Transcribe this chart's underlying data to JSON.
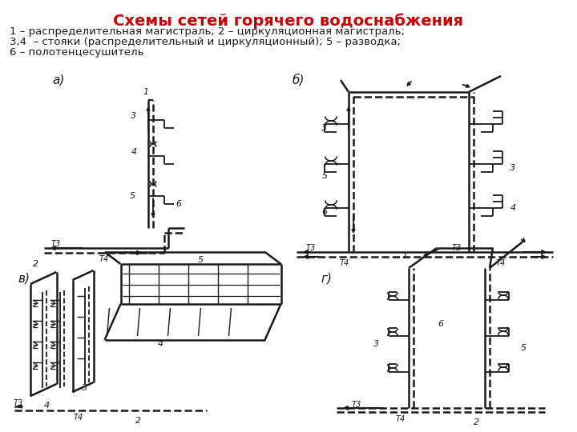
{
  "title": "Схемы сетей горячего водоснабжения",
  "title_color": "#cc0000",
  "title_fontsize": 14,
  "subtitle_lines": [
    "1 – распределительная магистраль; 2 – циркуляционная магистраль;",
    "3,4  – стояки (распределительный и циркуляционный); 5 – разводка;",
    "6 – полотенцесушитель"
  ],
  "bg_color": "#ffffff",
  "dc": "#1a1a1a"
}
